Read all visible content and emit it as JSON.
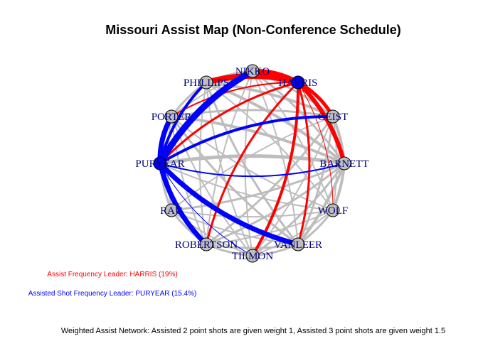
{
  "title": "Missouri Assist Map (Non-Conference Schedule)",
  "colors": {
    "node_fill": "#bebebe",
    "leader_fill": "#0000ee",
    "node_stroke": "#000000",
    "label": "#000080",
    "grey_edge": "#bdbdbd",
    "red_edge": "#ff0000",
    "blue_edge": "#0000ff"
  },
  "players": [
    {
      "id": "NIKKO",
      "label": "NIKKO"
    },
    {
      "id": "HARRIS",
      "label": "HARRIS"
    },
    {
      "id": "GEIST",
      "label": "GEIST"
    },
    {
      "id": "BARNETT",
      "label": "BARNETT"
    },
    {
      "id": "WOLF",
      "label": "WOLF"
    },
    {
      "id": "VANLEER",
      "label": "VANLEER"
    },
    {
      "id": "TILMON",
      "label": "TILMON"
    },
    {
      "id": "ROBERTSON",
      "label": "ROBERTSON"
    },
    {
      "id": "RAU",
      "label": "RAU"
    },
    {
      "id": "PURYEAR",
      "label": "PURYEAR"
    },
    {
      "id": "PORTER",
      "label": "PORTER"
    },
    {
      "id": "PHILLIPS",
      "label": "PHILLIPS"
    }
  ],
  "highlighted_nodes": {
    "HARRIS": "leader",
    "PURYEAR": "leader"
  },
  "edges": [
    {
      "from": "HARRIS",
      "to": "NIKKO",
      "color": "red",
      "weight": 6
    },
    {
      "from": "HARRIS",
      "to": "PHILLIPS",
      "color": "red",
      "weight": 8
    },
    {
      "from": "HARRIS",
      "to": "PORTER",
      "color": "red",
      "weight": 2
    },
    {
      "from": "HARRIS",
      "to": "GEIST",
      "color": "red",
      "weight": 5
    },
    {
      "from": "HARRIS",
      "to": "BARNETT",
      "color": "red",
      "weight": 6
    },
    {
      "from": "HARRIS",
      "to": "TILMON",
      "color": "red",
      "weight": 4
    },
    {
      "from": "HARRIS",
      "to": "ROBERTSON",
      "color": "red",
      "weight": 3
    },
    {
      "from": "HARRIS",
      "to": "VANLEER",
      "color": "red",
      "weight": 3
    },
    {
      "from": "HARRIS",
      "to": "PURYEAR",
      "color": "red",
      "weight": 3
    },
    {
      "from": "HARRIS",
      "to": "WOLF",
      "color": "red",
      "weight": 1
    },
    {
      "from": "PURYEAR",
      "to": "NIKKO",
      "color": "blue",
      "weight": 9
    },
    {
      "from": "PURYEAR",
      "to": "PORTER",
      "color": "blue",
      "weight": 7
    },
    {
      "from": "PURYEAR",
      "to": "PHILLIPS",
      "color": "blue",
      "weight": 4
    },
    {
      "from": "PURYEAR",
      "to": "ROBERTSON",
      "color": "blue",
      "weight": 7
    },
    {
      "from": "PURYEAR",
      "to": "VANLEER",
      "color": "blue",
      "weight": 7
    },
    {
      "from": "PURYEAR",
      "to": "GEIST",
      "color": "blue",
      "weight": 4
    },
    {
      "from": "PURYEAR",
      "to": "BARNETT",
      "color": "blue",
      "weight": 2
    },
    {
      "from": "PURYEAR",
      "to": "TILMON",
      "color": "blue",
      "weight": 1
    },
    {
      "from": "PHILLIPS",
      "to": "GEIST",
      "color": "grey",
      "weight": 4
    },
    {
      "from": "PHILLIPS",
      "to": "NIKKO",
      "color": "grey",
      "weight": 3
    },
    {
      "from": "PHILLIPS",
      "to": "PORTER",
      "color": "grey",
      "weight": 3
    },
    {
      "from": "PHILLIPS",
      "to": "BARNETT",
      "color": "grey",
      "weight": 4
    },
    {
      "from": "PHILLIPS",
      "to": "VANLEER",
      "color": "grey",
      "weight": 3
    },
    {
      "from": "PHILLIPS",
      "to": "ROBERTSON",
      "color": "grey",
      "weight": 2
    },
    {
      "from": "PHILLIPS",
      "to": "TILMON",
      "color": "grey",
      "weight": 2
    },
    {
      "from": "PHILLIPS",
      "to": "WOLF",
      "color": "grey",
      "weight": 2
    },
    {
      "from": "NIKKO",
      "to": "GEIST",
      "color": "grey",
      "weight": 3
    },
    {
      "from": "NIKKO",
      "to": "BARNETT",
      "color": "grey",
      "weight": 3
    },
    {
      "from": "NIKKO",
      "to": "PORTER",
      "color": "grey",
      "weight": 2
    },
    {
      "from": "NIKKO",
      "to": "VANLEER",
      "color": "grey",
      "weight": 2
    },
    {
      "from": "NIKKO",
      "to": "ROBERTSON",
      "color": "grey",
      "weight": 2
    },
    {
      "from": "NIKKO",
      "to": "TILMON",
      "color": "grey",
      "weight": 2
    },
    {
      "from": "NIKKO",
      "to": "WOLF",
      "color": "grey",
      "weight": 2
    },
    {
      "from": "PORTER",
      "to": "GEIST",
      "color": "grey",
      "weight": 3
    },
    {
      "from": "PORTER",
      "to": "BARNETT",
      "color": "grey",
      "weight": 4
    },
    {
      "from": "PORTER",
      "to": "VANLEER",
      "color": "grey",
      "weight": 3
    },
    {
      "from": "PORTER",
      "to": "TILMON",
      "color": "grey",
      "weight": 2
    },
    {
      "from": "PORTER",
      "to": "ROBERTSON",
      "color": "grey",
      "weight": 2
    },
    {
      "from": "PORTER",
      "to": "RAU",
      "color": "grey",
      "weight": 2
    },
    {
      "from": "PORTER",
      "to": "WOLF",
      "color": "grey",
      "weight": 2
    },
    {
      "from": "GEIST",
      "to": "BARNETT",
      "color": "grey",
      "weight": 4
    },
    {
      "from": "GEIST",
      "to": "VANLEER",
      "color": "grey",
      "weight": 3
    },
    {
      "from": "GEIST",
      "to": "ROBERTSON",
      "color": "grey",
      "weight": 3
    },
    {
      "from": "GEIST",
      "to": "TILMON",
      "color": "grey",
      "weight": 2
    },
    {
      "from": "GEIST",
      "to": "WOLF",
      "color": "grey",
      "weight": 2
    },
    {
      "from": "GEIST",
      "to": "RAU",
      "color": "grey",
      "weight": 2
    },
    {
      "from": "BARNETT",
      "to": "WOLF",
      "color": "grey",
      "weight": 4
    },
    {
      "from": "BARNETT",
      "to": "VANLEER",
      "color": "grey",
      "weight": 4
    },
    {
      "from": "BARNETT",
      "to": "ROBERTSON",
      "color": "grey",
      "weight": 3
    },
    {
      "from": "BARNETT",
      "to": "TILMON",
      "color": "grey",
      "weight": 3
    },
    {
      "from": "BARNETT",
      "to": "RAU",
      "color": "grey",
      "weight": 3
    },
    {
      "from": "BARNETT",
      "to": "PURYEAR",
      "color": "grey",
      "weight": 5
    },
    {
      "from": "WOLF",
      "to": "VANLEER",
      "color": "grey",
      "weight": 3
    },
    {
      "from": "WOLF",
      "to": "ROBERTSON",
      "color": "grey",
      "weight": 2
    },
    {
      "from": "WOLF",
      "to": "TILMON",
      "color": "grey",
      "weight": 2
    },
    {
      "from": "WOLF",
      "to": "RAU",
      "color": "grey",
      "weight": 2
    },
    {
      "from": "VANLEER",
      "to": "TILMON",
      "color": "grey",
      "weight": 3
    },
    {
      "from": "VANLEER",
      "to": "ROBERTSON",
      "color": "grey",
      "weight": 3
    },
    {
      "from": "VANLEER",
      "to": "RAU",
      "color": "grey",
      "weight": 2
    },
    {
      "from": "TILMON",
      "to": "ROBERTSON",
      "color": "grey",
      "weight": 3
    },
    {
      "from": "TILMON",
      "to": "RAU",
      "color": "grey",
      "weight": 2
    },
    {
      "from": "ROBERTSON",
      "to": "RAU",
      "color": "grey",
      "weight": 3
    },
    {
      "from": "RAU",
      "to": "PURYEAR",
      "color": "grey",
      "weight": 3
    },
    {
      "from": "PURYEAR",
      "to": "WOLF",
      "color": "grey",
      "weight": 2
    },
    {
      "from": "PORTER",
      "to": "PURYEAR",
      "color": "grey",
      "weight": 3
    }
  ],
  "legend": {
    "assist_leader": "Assist Frequency Leader: HARRIS (19%)",
    "assisted_leader": "Assisted Shot Frequency Leader: PURYEAR (15.4%)"
  },
  "caption": "Weighted Assist Network: Assisted 2 point shots are given weight 1, Assisted 3 point shots are given weight 1.5"
}
